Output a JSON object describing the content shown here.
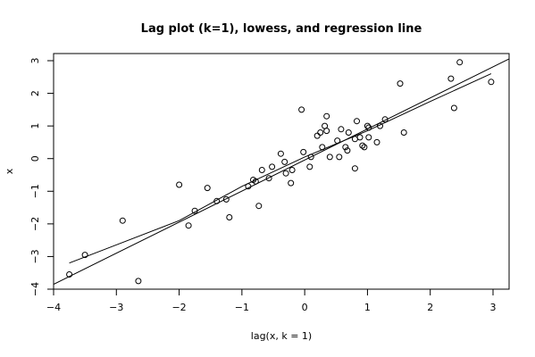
{
  "chart_data": {
    "type": "scatter",
    "title": "Lag plot (k=1), lowess, and regression line",
    "xlabel": "lag(x, k = 1)",
    "ylabel": "x",
    "xlim": [
      -4,
      3.2
    ],
    "ylim": [
      -4,
      3.3
    ],
    "x_ticks": [
      -4,
      -3,
      -2,
      -1,
      0,
      1,
      2,
      3
    ],
    "y_ticks": [
      -4,
      -3,
      -2,
      -1,
      0,
      1,
      2,
      3
    ],
    "grid": false,
    "series": [
      {
        "kind": "points",
        "points": [
          [
            -3.75,
            -3.55
          ],
          [
            -3.5,
            -2.95
          ],
          [
            -2.9,
            -1.9
          ],
          [
            -2.65,
            -3.75
          ],
          [
            -2.0,
            -0.8
          ],
          [
            -1.85,
            -2.05
          ],
          [
            -1.75,
            -1.6
          ],
          [
            -1.55,
            -0.9
          ],
          [
            -1.4,
            -1.3
          ],
          [
            -1.25,
            -1.25
          ],
          [
            -1.2,
            -1.8
          ],
          [
            -0.9,
            -0.85
          ],
          [
            -0.82,
            -0.65
          ],
          [
            -0.78,
            -0.7
          ],
          [
            -0.73,
            -1.45
          ],
          [
            -0.68,
            -0.35
          ],
          [
            -0.57,
            -0.6
          ],
          [
            -0.52,
            -0.25
          ],
          [
            -0.38,
            0.15
          ],
          [
            -0.32,
            -0.1
          ],
          [
            -0.3,
            -0.45
          ],
          [
            -0.22,
            -0.75
          ],
          [
            -0.2,
            -0.35
          ],
          [
            -0.05,
            1.5
          ],
          [
            -0.02,
            0.2
          ],
          [
            0.08,
            -0.25
          ],
          [
            0.1,
            0.05
          ],
          [
            0.2,
            0.7
          ],
          [
            0.25,
            0.8
          ],
          [
            0.28,
            0.35
          ],
          [
            0.32,
            1.0
          ],
          [
            0.35,
            1.3
          ],
          [
            0.35,
            0.85
          ],
          [
            0.4,
            0.05
          ],
          [
            0.52,
            0.55
          ],
          [
            0.55,
            0.05
          ],
          [
            0.58,
            0.9
          ],
          [
            0.65,
            0.35
          ],
          [
            0.68,
            0.25
          ],
          [
            0.7,
            0.8
          ],
          [
            0.8,
            0.6
          ],
          [
            0.8,
            -0.3
          ],
          [
            0.83,
            1.15
          ],
          [
            0.88,
            0.65
          ],
          [
            0.92,
            0.4
          ],
          [
            0.95,
            0.35
          ],
          [
            1.0,
            1.0
          ],
          [
            1.02,
            0.95
          ],
          [
            1.02,
            0.65
          ],
          [
            1.15,
            0.5
          ],
          [
            1.2,
            1.0
          ],
          [
            1.28,
            1.2
          ],
          [
            1.52,
            2.3
          ],
          [
            1.58,
            0.8
          ],
          [
            2.33,
            2.45
          ],
          [
            2.38,
            1.55
          ],
          [
            2.47,
            2.95
          ],
          [
            2.97,
            2.35
          ]
        ]
      },
      {
        "kind": "line",
        "name": "",
        "points": [
          [
            -4.0,
            -3.85
          ],
          [
            3.25,
            3.05
          ]
        ]
      },
      {
        "kind": "line",
        "name": "",
        "points": [
          [
            -3.75,
            -3.2
          ],
          [
            -2.0,
            -1.9
          ],
          [
            -1.0,
            -0.85
          ],
          [
            0.0,
            0.05
          ],
          [
            1.0,
            0.85
          ],
          [
            2.0,
            1.75
          ],
          [
            2.97,
            2.6
          ]
        ]
      }
    ]
  }
}
